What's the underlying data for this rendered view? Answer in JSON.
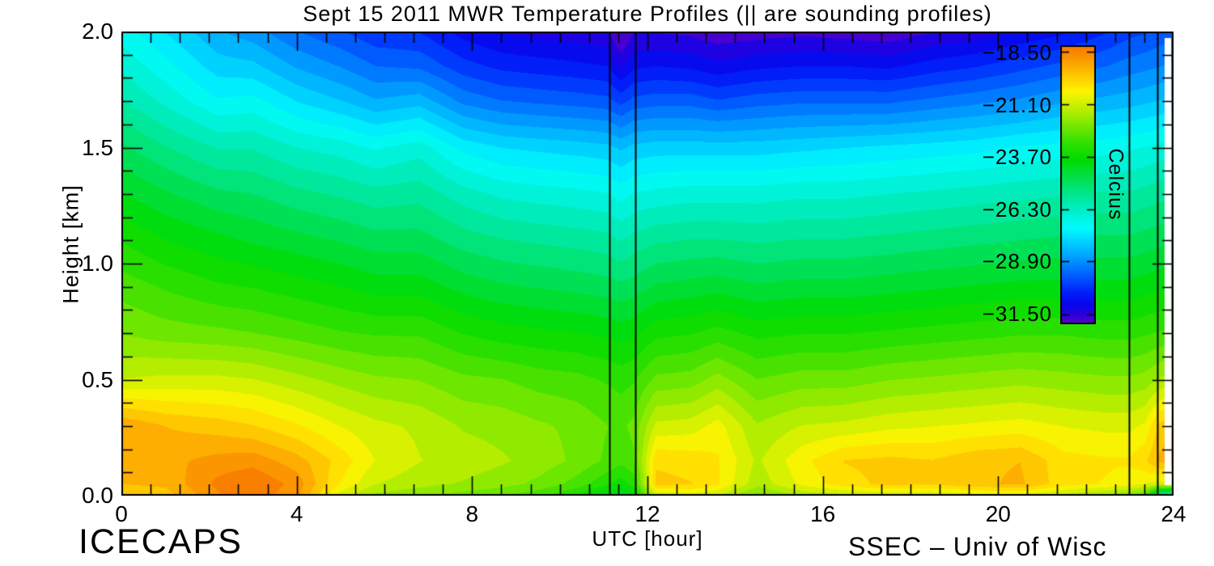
{
  "page": {
    "background": "#ffffff"
  },
  "title": "Sept 15 2011 MWR Temperature Profiles (|| are sounding profiles)",
  "footer": {
    "left": "ICECAPS",
    "right": "SSEC – Univ of Wisc"
  },
  "axes": {
    "x": {
      "label": "UTC [hour]",
      "min": 0,
      "max": 24,
      "major_ticks": [
        0,
        4,
        8,
        12,
        16,
        20,
        24
      ],
      "tick_labels": [
        "0",
        "4",
        "8",
        "12",
        "16",
        "20",
        "24"
      ],
      "minor_step": 0.6667
    },
    "y": {
      "label": "Height [km]",
      "min": 0,
      "max": 2,
      "major_ticks": [
        0,
        0.5,
        1.0,
        1.5,
        2.0
      ],
      "tick_labels_top_down": [
        "2.0",
        "1.5",
        "1.0",
        "0.5",
        "0.0"
      ],
      "minor_step": 0.1
    }
  },
  "colorbar": {
    "title": "Celcius",
    "tick_labels": [
      "−18.50",
      "−21.10",
      "−23.70",
      "−26.30",
      "−28.90",
      "−31.50"
    ],
    "tick_values": [
      -18.5,
      -21.1,
      -23.7,
      -26.3,
      -28.9,
      -31.5
    ],
    "vmax": -18.2,
    "vmin": -32.0
  },
  "chart_data": {
    "type": "heatmap",
    "title": "Sept 15 2011 MWR Temperature Profiles (|| are sounding profiles)",
    "xlabel": "UTC [hour]",
    "ylabel": "Height [km]",
    "units": "Celcius",
    "xlim": [
      0,
      24
    ],
    "ylim": [
      0,
      2
    ],
    "contour_step_c": 0.43125,
    "sounding_hours": [
      11.13,
      11.72,
      22.98,
      23.63
    ],
    "x_hours": [
      0,
      1,
      2.2,
      3,
      4,
      5,
      5.8,
      6.8,
      7.8,
      8.7,
      9.5,
      10.4,
      11.08,
      11.4,
      11.68,
      12.2,
      13,
      13.6,
      14.5,
      15.5,
      16.5,
      17.5,
      18.5,
      19.5,
      20.5,
      21.5,
      22.5,
      23,
      23.35,
      23.68,
      24
    ],
    "y_heights_km": [
      0,
      0.05,
      0.15,
      0.3,
      0.5,
      0.7,
      0.9,
      1.1,
      1.3,
      1.5,
      1.7,
      1.85,
      2.0
    ],
    "temperature_c": [
      [
        -19.8,
        -19.5,
        -19.2,
        -19.1,
        -21.2,
        -22.1,
        -22.7,
        -23.4,
        -24.2,
        -25.0,
        -25.9,
        -26.5,
        -27.0
      ],
      [
        -19.7,
        -19.4,
        -19.2,
        -19.5,
        -21.1,
        -22.3,
        -23.0,
        -23.8,
        -24.6,
        -25.5,
        -26.5,
        -27.1,
        -27.7
      ],
      [
        -18.7,
        -18.5,
        -18.9,
        -19.7,
        -21.1,
        -22.4,
        -23.3,
        -24.1,
        -25.0,
        -26.0,
        -27.2,
        -27.9,
        -28.5
      ],
      [
        -18.4,
        -18.2,
        -18.8,
        -19.9,
        -21.2,
        -22.5,
        -23.4,
        -24.3,
        -25.1,
        -26.0,
        -27.1,
        -28.0,
        -28.8
      ],
      [
        -18.9,
        -18.8,
        -19.3,
        -20.3,
        -21.5,
        -22.7,
        -23.6,
        -24.5,
        -25.4,
        -26.4,
        -27.7,
        -28.6,
        -29.4
      ],
      [
        -21.0,
        -20.4,
        -20.1,
        -20.8,
        -21.8,
        -22.9,
        -23.8,
        -24.7,
        -25.6,
        -26.6,
        -28.1,
        -29.0,
        -29.8
      ],
      [
        -21.8,
        -21.2,
        -20.8,
        -21.1,
        -22.0,
        -23.0,
        -24.0,
        -24.9,
        -25.8,
        -26.9,
        -28.5,
        -29.4,
        -30.2
      ],
      [
        -22.0,
        -21.5,
        -21.2,
        -21.3,
        -22.1,
        -23.0,
        -24.0,
        -24.9,
        -25.7,
        -26.6,
        -28.3,
        -29.5,
        -30.3
      ],
      [
        -22.3,
        -21.7,
        -21.4,
        -21.7,
        -22.4,
        -23.4,
        -24.4,
        -25.3,
        -26.2,
        -27.4,
        -29.1,
        -30.1,
        -30.9
      ],
      [
        -22.5,
        -21.9,
        -21.6,
        -21.8,
        -22.5,
        -23.6,
        -24.6,
        -25.5,
        -26.5,
        -27.7,
        -29.4,
        -30.4,
        -31.2
      ],
      [
        -22.8,
        -22.2,
        -21.8,
        -22.0,
        -22.7,
        -23.7,
        -24.7,
        -25.6,
        -26.6,
        -27.8,
        -29.5,
        -30.5,
        -31.3
      ],
      [
        -23.4,
        -22.7,
        -22.2,
        -22.2,
        -22.8,
        -23.8,
        -24.8,
        -25.7,
        -26.7,
        -27.9,
        -29.6,
        -30.6,
        -31.4
      ],
      [
        -24.3,
        -23.3,
        -22.6,
        -22.5,
        -23.0,
        -23.9,
        -24.9,
        -25.8,
        -26.8,
        -28.0,
        -29.7,
        -30.7,
        -31.5
      ],
      [
        -24.6,
        -23.6,
        -22.8,
        -22.6,
        -23.1,
        -24.0,
        -25.0,
        -26.0,
        -27.0,
        -28.2,
        -30.0,
        -31.2,
        -32.2
      ],
      [
        -24.0,
        -23.2,
        -22.6,
        -22.4,
        -23.0,
        -23.9,
        -24.9,
        -25.8,
        -26.8,
        -28.0,
        -29.7,
        -30.8,
        -31.6
      ],
      [
        -21.2,
        -19.8,
        -20.0,
        -21.1,
        -22.4,
        -23.5,
        -24.6,
        -25.6,
        -26.7,
        -27.9,
        -29.6,
        -30.7,
        -31.6
      ],
      [
        -21.0,
        -19.9,
        -20.1,
        -21.0,
        -22.3,
        -23.4,
        -24.5,
        -25.5,
        -26.6,
        -27.9,
        -29.6,
        -30.8,
        -31.7
      ],
      [
        -21.2,
        -20.3,
        -20.3,
        -20.6,
        -21.9,
        -23.2,
        -24.4,
        -25.5,
        -26.6,
        -27.9,
        -29.8,
        -31.0,
        -31.9
      ],
      [
        -22.3,
        -21.5,
        -21.3,
        -21.6,
        -22.5,
        -23.5,
        -24.6,
        -25.6,
        -26.6,
        -27.9,
        -29.6,
        -30.8,
        -31.8
      ],
      [
        -21.6,
        -20.7,
        -20.5,
        -21.2,
        -22.3,
        -23.4,
        -24.5,
        -25.5,
        -26.5,
        -27.8,
        -29.5,
        -30.7,
        -31.7
      ],
      [
        -21.4,
        -20.1,
        -19.9,
        -21.1,
        -22.3,
        -23.4,
        -24.5,
        -25.5,
        -26.5,
        -27.7,
        -29.5,
        -30.7,
        -31.8
      ],
      [
        -21.2,
        -19.8,
        -19.8,
        -20.9,
        -22.1,
        -23.3,
        -24.4,
        -25.4,
        -26.4,
        -27.6,
        -29.5,
        -30.8,
        -31.9
      ],
      [
        -21.2,
        -19.9,
        -19.9,
        -20.8,
        -22.0,
        -23.2,
        -24.3,
        -25.3,
        -26.3,
        -27.5,
        -29.3,
        -30.5,
        -31.6
      ],
      [
        -21.0,
        -19.6,
        -19.6,
        -20.7,
        -21.9,
        -23.1,
        -24.2,
        -25.2,
        -26.2,
        -27.4,
        -29.1,
        -30.3,
        -31.4
      ],
      [
        -21.0,
        -19.4,
        -19.5,
        -20.6,
        -21.8,
        -23.0,
        -24.1,
        -25.1,
        -26.1,
        -27.2,
        -28.9,
        -30.0,
        -31.1
      ],
      [
        -21.4,
        -20.2,
        -20.2,
        -20.8,
        -21.9,
        -23.0,
        -24.1,
        -25.0,
        -26.0,
        -27.1,
        -28.6,
        -29.7,
        -30.8
      ],
      [
        -21.8,
        -20.4,
        -20.3,
        -20.9,
        -22.0,
        -23.1,
        -24.1,
        -25.0,
        -25.9,
        -27.0,
        -28.4,
        -29.4,
        -30.3
      ],
      [
        -22.2,
        -20.6,
        -20.3,
        -20.9,
        -22.0,
        -23.1,
        -24.1,
        -25.0,
        -25.9,
        -26.9,
        -28.3,
        -29.2,
        -30.0
      ],
      [
        -22.6,
        -20.8,
        -20.0,
        -20.7,
        -21.9,
        -23.0,
        -24.0,
        -24.9,
        -25.8,
        -26.8,
        -28.2,
        -29.1,
        -29.9
      ],
      [
        -26.3,
        -21.0,
        -19.4,
        -19.8,
        -21.6,
        -22.9,
        -23.9,
        -24.8,
        -25.7,
        -26.7,
        -28.1,
        -29.0,
        -29.7
      ],
      [
        -27.3,
        -20.8,
        -19.2,
        -19.5,
        -21.4,
        -22.8,
        -23.8,
        -24.7,
        -25.6,
        -26.6,
        -28.0,
        -28.9,
        -29.6
      ]
    ],
    "colormap_stops": [
      [
        0.0,
        "#f87400"
      ],
      [
        0.06,
        "#fca000"
      ],
      [
        0.12,
        "#ffd000"
      ],
      [
        0.165,
        "#fff400"
      ],
      [
        0.21,
        "#d0f000"
      ],
      [
        0.28,
        "#80e800"
      ],
      [
        0.35,
        "#30e000"
      ],
      [
        0.41,
        "#00dc00"
      ],
      [
        0.48,
        "#00e050"
      ],
      [
        0.55,
        "#00e8a0"
      ],
      [
        0.6,
        "#00f0d0"
      ],
      [
        0.655,
        "#00fcfc"
      ],
      [
        0.71,
        "#00ccff"
      ],
      [
        0.775,
        "#0090ff"
      ],
      [
        0.835,
        "#0054ff"
      ],
      [
        0.885,
        "#0020fa"
      ],
      [
        0.93,
        "#0a05eb"
      ],
      [
        0.965,
        "#2800dc"
      ],
      [
        1.0,
        "#6000c8"
      ]
    ]
  }
}
